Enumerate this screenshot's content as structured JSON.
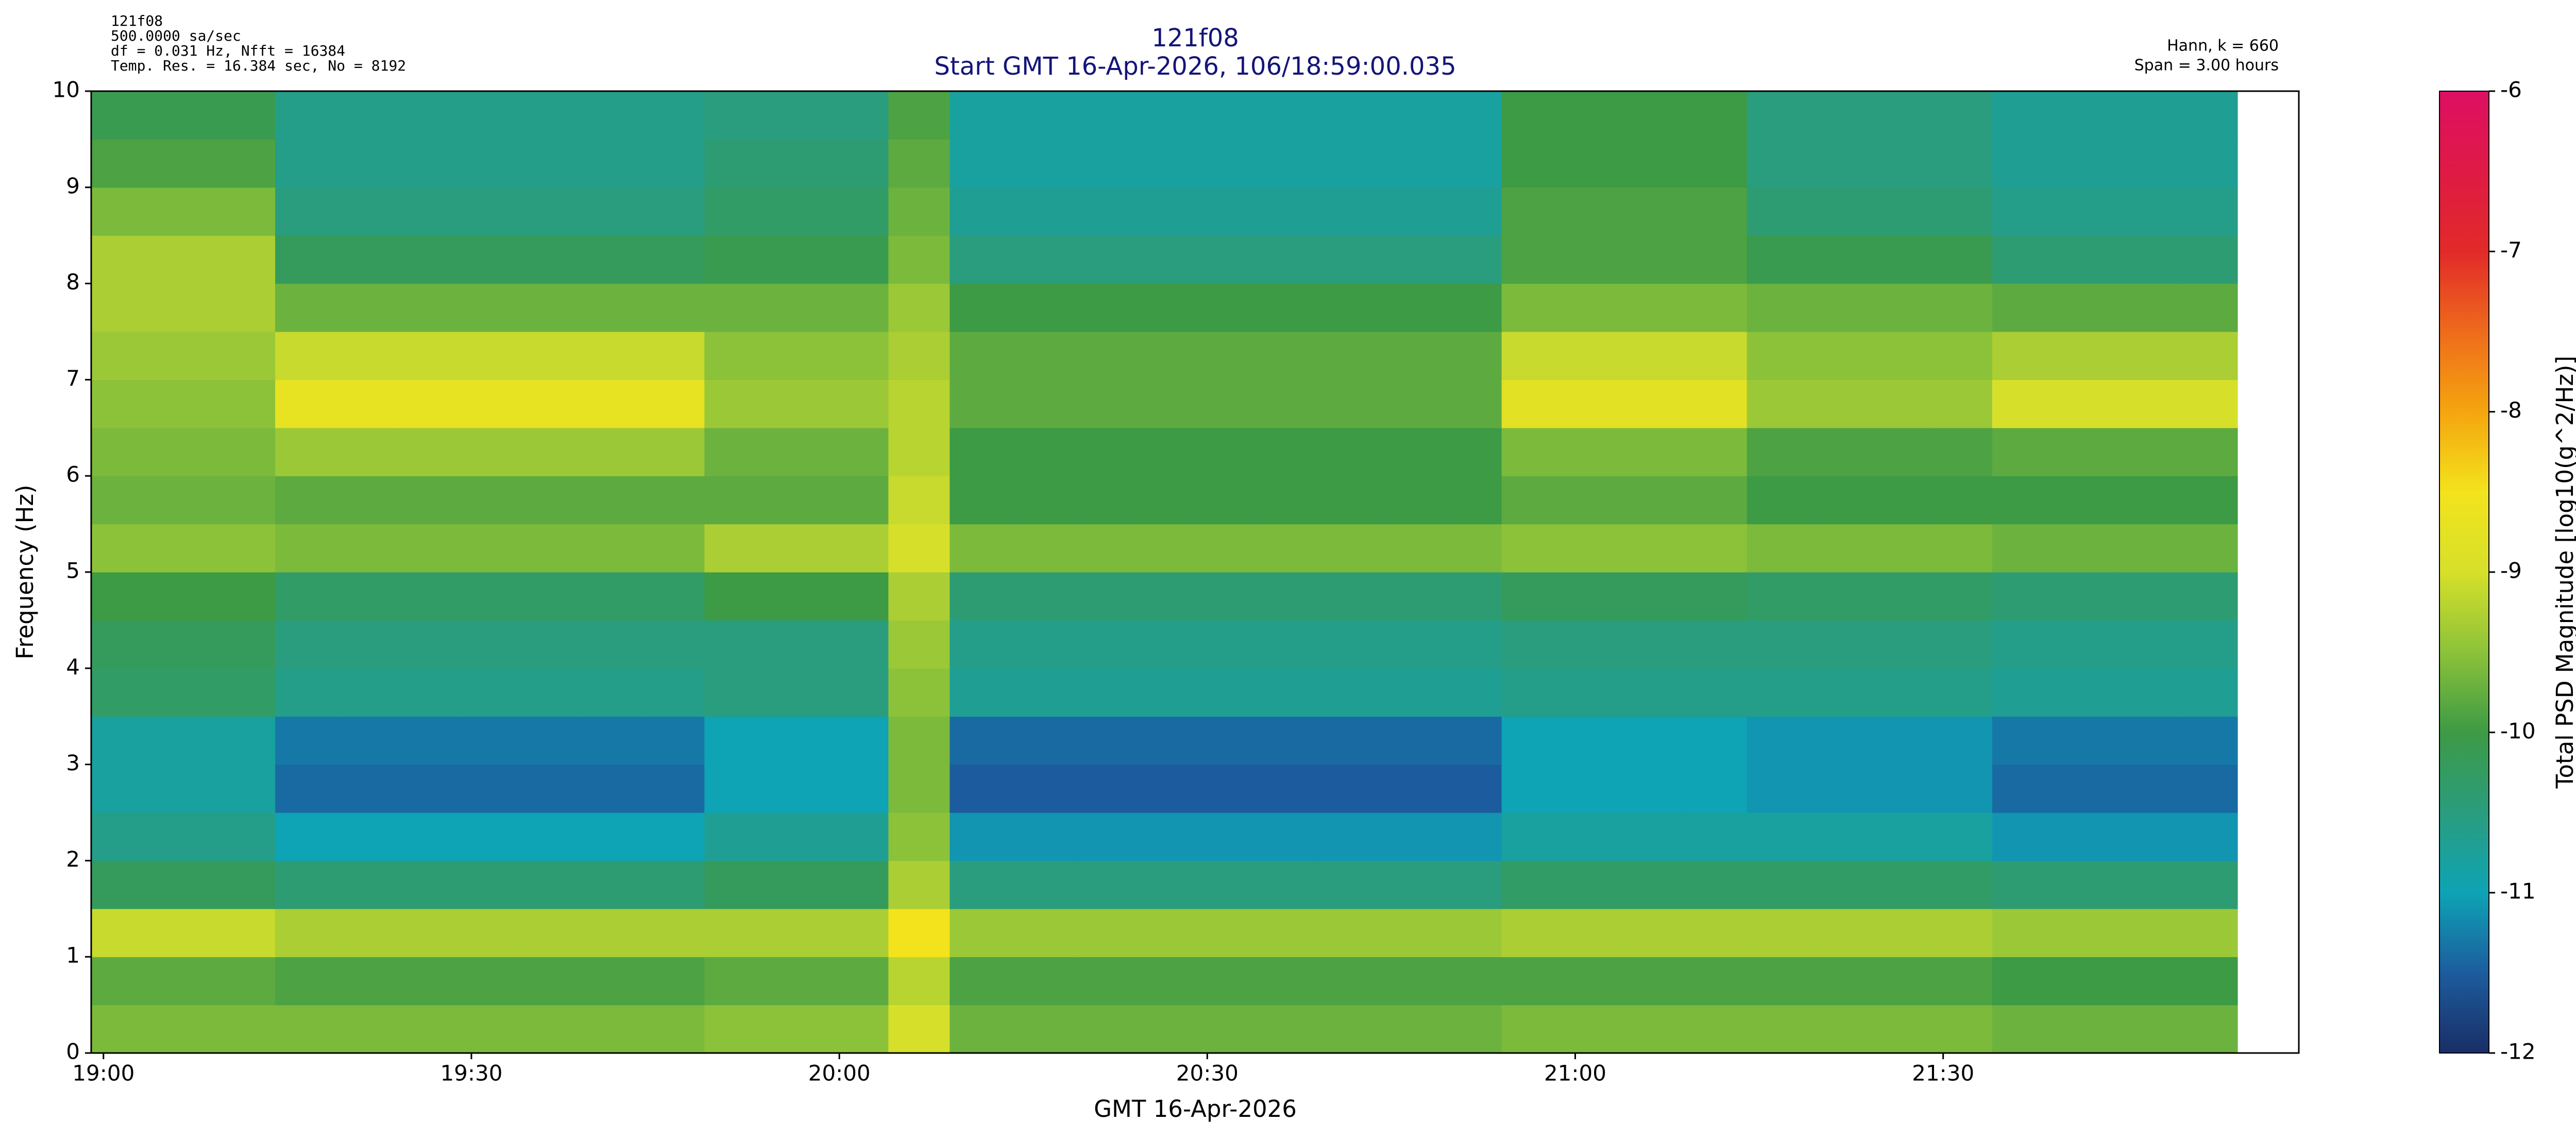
{
  "chart_data": {
    "type": "heatmap",
    "title": "121f08",
    "subtitle": "Start GMT 16-Apr-2026, 106/18:59:00.035",
    "notes_left": [
      "121f08",
      "500.0000 sa/sec",
      "df = 0.031 Hz,  Nfft = 16384",
      "Temp. Res. = 16.384 sec, No = 8192"
    ],
    "notes_right": [
      "Hann, k = 660",
      "Span = 3.00 hours"
    ],
    "x_label": "GMT 16-Apr-2026",
    "y_label": "Frequency (Hz)",
    "colorbar_label": "Total PSD Magnitude [log10(g^2/Hz)]",
    "xlim": [
      1139,
      1319
    ],
    "ylim": [
      0,
      10
    ],
    "xticks": [
      {
        "value": 1140,
        "label": "19:00"
      },
      {
        "value": 1170,
        "label": "19:30"
      },
      {
        "value": 1200,
        "label": "20:00"
      },
      {
        "value": 1230,
        "label": "20:30"
      },
      {
        "value": 1260,
        "label": "21:00"
      },
      {
        "value": 1290,
        "label": "21:30"
      }
    ],
    "yticks": [
      0,
      1,
      2,
      3,
      4,
      5,
      6,
      7,
      8,
      9,
      10
    ],
    "zlim": [
      -12,
      -6
    ],
    "zticks": [
      -6,
      -7,
      -8,
      -9,
      -10,
      -11,
      -12
    ],
    "colors": [
      "#1a2e66",
      "#1c5c9e",
      "#0ea3b5",
      "#2a9d7e",
      "#3d9a45",
      "#8cc23a",
      "#d6e02a",
      "#f3e31c",
      "#f5a50f",
      "#ee6b1c",
      "#e22a28",
      "#df1a45",
      "#de0f62"
    ],
    "x": [
      1139,
      1144,
      1149,
      1154,
      1159,
      1164,
      1169,
      1174,
      1179,
      1184,
      1189,
      1194,
      1199,
      1204,
      1209,
      1214,
      1219,
      1224,
      1229,
      1234,
      1239,
      1244,
      1249,
      1254,
      1259,
      1264,
      1269,
      1274,
      1279,
      1284,
      1289,
      1294,
      1299,
      1304,
      1309,
      1314
    ],
    "y": [
      0,
      0.5,
      1,
      1.5,
      2,
      2.5,
      3,
      3.5,
      4,
      4.5,
      5,
      5.5,
      6,
      6.5,
      7,
      7.5,
      8,
      8.5,
      9,
      9.5
    ],
    "z": [
      [
        -9.6,
        -9.6,
        -9.6,
        -9.6,
        -9.6,
        -9.6,
        -9.6,
        -9.6,
        -9.6,
        -9.6,
        -9.5,
        -9.5,
        -9.5,
        -9,
        -9.7,
        -9.7,
        -9.7,
        -9.7,
        -9.7,
        -9.7,
        -9.7,
        -9.7,
        -9.7,
        -9.6,
        -9.6,
        -9.6,
        -9.6,
        -9.6,
        -9.6,
        -9.6,
        -9.6,
        -9.7,
        -9.7,
        -9.7,
        -9.7,
        null
      ],
      [
        -9.8,
        -9.8,
        -9.8,
        -9.9,
        -9.9,
        -9.9,
        -9.9,
        -9.9,
        -9.9,
        -9.9,
        -9.8,
        -9.8,
        -9.8,
        -9.2,
        -9.9,
        -9.9,
        -9.9,
        -9.9,
        -9.9,
        -9.9,
        -9.9,
        -9.9,
        -9.9,
        -9.9,
        -9.9,
        -9.9,
        -9.9,
        -9.9,
        -9.9,
        -9.9,
        -9.9,
        -10,
        -10,
        -10,
        -10,
        null
      ],
      [
        -9.1,
        -9.1,
        -9.1,
        -9.3,
        -9.3,
        -9.3,
        -9.3,
        -9.3,
        -9.3,
        -9.3,
        -9.3,
        -9.3,
        -9.3,
        -8.5,
        -9.4,
        -9.4,
        -9.4,
        -9.4,
        -9.4,
        -9.4,
        -9.4,
        -9.4,
        -9.4,
        -9.3,
        -9.3,
        -9.3,
        -9.3,
        -9.3,
        -9.3,
        -9.3,
        -9.3,
        -9.4,
        -9.4,
        -9.4,
        -9.4,
        null
      ],
      [
        -10.2,
        -10.2,
        -10.2,
        -10.4,
        -10.4,
        -10.4,
        -10.4,
        -10.4,
        -10.4,
        -10.4,
        -10.2,
        -10.2,
        -10.2,
        -9.3,
        -10.5,
        -10.5,
        -10.5,
        -10.5,
        -10.5,
        -10.5,
        -10.5,
        -10.5,
        -10.5,
        -10.3,
        -10.3,
        -10.3,
        -10.3,
        -10.3,
        -10.3,
        -10.3,
        -10.3,
        -10.4,
        -10.4,
        -10.4,
        -10.4,
        null
      ],
      [
        -10.6,
        -10.6,
        -10.6,
        -11,
        -11,
        -11,
        -11,
        -11,
        -11,
        -11,
        -10.7,
        -10.7,
        -10.7,
        -9.5,
        -11.1,
        -11.1,
        -11.1,
        -11.1,
        -11.1,
        -11.1,
        -11.1,
        -11.1,
        -11.1,
        -10.8,
        -10.8,
        -10.8,
        -10.8,
        -10.8,
        -10.8,
        -10.8,
        -10.8,
        -11.1,
        -11.1,
        -11.1,
        -11.1,
        null
      ],
      [
        -10.8,
        -10.8,
        -10.8,
        -11.4,
        -11.4,
        -11.4,
        -11.4,
        -11.4,
        -11.4,
        -11.4,
        -11,
        -11,
        -11,
        -9.6,
        -11.5,
        -11.5,
        -11.5,
        -11.5,
        -11.5,
        -11.5,
        -11.5,
        -11.5,
        -11.5,
        -11,
        -11,
        -11,
        -11,
        -11.1,
        -11.1,
        -11.1,
        -11.1,
        -11.4,
        -11.4,
        -11.4,
        -11.4,
        null
      ],
      [
        -10.8,
        -10.8,
        -10.8,
        -11.3,
        -11.3,
        -11.3,
        -11.3,
        -11.3,
        -11.3,
        -11.3,
        -11,
        -11,
        -11,
        -9.6,
        -11.4,
        -11.4,
        -11.4,
        -11.4,
        -11.4,
        -11.4,
        -11.4,
        -11.4,
        -11.4,
        -11,
        -11,
        -11,
        -11,
        -11.1,
        -11.1,
        -11.1,
        -11.1,
        -11.3,
        -11.3,
        -11.3,
        -11.3,
        null
      ],
      [
        -10.3,
        -10.3,
        -10.3,
        -10.6,
        -10.6,
        -10.6,
        -10.6,
        -10.6,
        -10.6,
        -10.6,
        -10.5,
        -10.5,
        -10.5,
        -9.5,
        -10.7,
        -10.7,
        -10.7,
        -10.7,
        -10.7,
        -10.7,
        -10.7,
        -10.7,
        -10.7,
        -10.6,
        -10.6,
        -10.6,
        -10.6,
        -10.6,
        -10.6,
        -10.6,
        -10.6,
        -10.7,
        -10.7,
        -10.7,
        -10.7,
        null
      ],
      [
        -10.2,
        -10.2,
        -10.2,
        -10.5,
        -10.5,
        -10.5,
        -10.5,
        -10.5,
        -10.5,
        -10.5,
        -10.5,
        -10.5,
        -10.5,
        -9.4,
        -10.6,
        -10.6,
        -10.6,
        -10.6,
        -10.6,
        -10.6,
        -10.6,
        -10.6,
        -10.6,
        -10.5,
        -10.5,
        -10.5,
        -10.5,
        -10.5,
        -10.5,
        -10.5,
        -10.5,
        -10.6,
        -10.6,
        -10.6,
        -10.6,
        null
      ],
      [
        -10,
        -10,
        -10,
        -10.3,
        -10.3,
        -10.3,
        -10.3,
        -10.3,
        -10.3,
        -10.3,
        -10,
        -10,
        -10,
        -9.3,
        -10.4,
        -10.4,
        -10.4,
        -10.4,
        -10.4,
        -10.4,
        -10.4,
        -10.4,
        -10.4,
        -10.2,
        -10.2,
        -10.2,
        -10.2,
        -10.3,
        -10.3,
        -10.3,
        -10.3,
        -10.4,
        -10.4,
        -10.4,
        -10.4,
        null
      ],
      [
        -9.5,
        -9.5,
        -9.5,
        -9.6,
        -9.6,
        -9.6,
        -9.6,
        -9.6,
        -9.6,
        -9.6,
        -9.3,
        -9.3,
        -9.3,
        -9,
        -9.6,
        -9.6,
        -9.6,
        -9.6,
        -9.6,
        -9.6,
        -9.6,
        -9.6,
        -9.6,
        -9.5,
        -9.5,
        -9.5,
        -9.5,
        -9.6,
        -9.6,
        -9.6,
        -9.6,
        -9.7,
        -9.7,
        -9.7,
        -9.7,
        null
      ],
      [
        -9.7,
        -9.7,
        -9.7,
        -9.8,
        -9.8,
        -9.8,
        -9.8,
        -9.8,
        -9.8,
        -9.8,
        -9.8,
        -9.8,
        -9.8,
        -9.1,
        -10,
        -10,
        -10,
        -10,
        -10,
        -10,
        -10,
        -10,
        -10,
        -9.8,
        -9.8,
        -9.8,
        -9.8,
        -10,
        -10,
        -10,
        -10,
        -10,
        -10,
        -10,
        -10,
        null
      ],
      [
        -9.6,
        -9.6,
        -9.6,
        -9.4,
        -9.4,
        -9.4,
        -9.4,
        -9.4,
        -9.4,
        -9.4,
        -9.7,
        -9.7,
        -9.7,
        -9.2,
        -10,
        -10,
        -10,
        -10,
        -10,
        -10,
        -10,
        -10,
        -10,
        -9.6,
        -9.6,
        -9.6,
        -9.6,
        -9.9,
        -9.9,
        -9.9,
        -9.9,
        -9.8,
        -9.8,
        -9.8,
        -9.8,
        null
      ],
      [
        -9.5,
        -9.5,
        -9.5,
        -8.7,
        -8.7,
        -8.7,
        -8.7,
        -8.7,
        -8.7,
        -8.7,
        -9.4,
        -9.4,
        -9.4,
        -9.2,
        -9.8,
        -9.8,
        -9.8,
        -9.8,
        -9.8,
        -9.8,
        -9.8,
        -9.8,
        -9.8,
        -8.8,
        -8.8,
        -8.8,
        -8.8,
        -9.4,
        -9.4,
        -9.4,
        -9.4,
        -9,
        -9,
        -9,
        -9,
        null
      ],
      [
        -9.4,
        -9.4,
        -9.4,
        -9.1,
        -9.1,
        -9.1,
        -9.1,
        -9.1,
        -9.1,
        -9.1,
        -9.5,
        -9.5,
        -9.5,
        -9.3,
        -9.8,
        -9.8,
        -9.8,
        -9.8,
        -9.8,
        -9.8,
        -9.8,
        -9.8,
        -9.8,
        -9.1,
        -9.1,
        -9.1,
        -9.1,
        -9.5,
        -9.5,
        -9.5,
        -9.5,
        -9.3,
        -9.3,
        -9.3,
        -9.3,
        null
      ],
      [
        -9.3,
        -9.3,
        -9.3,
        -9.7,
        -9.7,
        -9.7,
        -9.7,
        -9.7,
        -9.7,
        -9.7,
        -9.7,
        -9.7,
        -9.7,
        -9.4,
        -10,
        -10,
        -10,
        -10,
        -10,
        -10,
        -10,
        -10,
        -10,
        -9.6,
        -9.6,
        -9.6,
        -9.6,
        -9.7,
        -9.7,
        -9.7,
        -9.7,
        -9.8,
        -9.8,
        -9.8,
        -9.8,
        null
      ],
      [
        -9.3,
        -9.3,
        -9.3,
        -10.2,
        -10.2,
        -10.2,
        -10.2,
        -10.2,
        -10.2,
        -10.2,
        -10.1,
        -10.1,
        -10.1,
        -9.6,
        -10.5,
        -10.5,
        -10.5,
        -10.5,
        -10.5,
        -10.5,
        -10.5,
        -10.5,
        -10.5,
        -9.9,
        -9.9,
        -9.9,
        -9.9,
        -10.1,
        -10.1,
        -10.1,
        -10.1,
        -10.4,
        -10.4,
        -10.4,
        -10.4,
        null
      ],
      [
        -9.6,
        -9.6,
        -9.6,
        -10.5,
        -10.5,
        -10.5,
        -10.5,
        -10.5,
        -10.5,
        -10.5,
        -10.3,
        -10.3,
        -10.3,
        -9.7,
        -10.7,
        -10.7,
        -10.7,
        -10.7,
        -10.7,
        -10.7,
        -10.7,
        -10.7,
        -10.7,
        -9.9,
        -9.9,
        -9.9,
        -9.9,
        -10.4,
        -10.4,
        -10.4,
        -10.4,
        -10.6,
        -10.6,
        -10.6,
        -10.6,
        null
      ],
      [
        -9.9,
        -9.9,
        -9.9,
        -10.6,
        -10.6,
        -10.6,
        -10.6,
        -10.6,
        -10.6,
        -10.6,
        -10.4,
        -10.4,
        -10.4,
        -9.8,
        -10.8,
        -10.8,
        -10.8,
        -10.8,
        -10.8,
        -10.8,
        -10.8,
        -10.8,
        -10.8,
        -10,
        -10,
        -10,
        -10,
        -10.5,
        -10.5,
        -10.5,
        -10.5,
        -10.7,
        -10.7,
        -10.7,
        -10.7,
        null
      ],
      [
        -10.1,
        -10.1,
        -10.1,
        -10.6,
        -10.6,
        -10.6,
        -10.6,
        -10.6,
        -10.6,
        -10.6,
        -10.5,
        -10.5,
        -10.5,
        -9.9,
        -10.8,
        -10.8,
        -10.8,
        -10.8,
        -10.8,
        -10.8,
        -10.8,
        -10.8,
        -10.8,
        -10,
        -10,
        -10,
        -10,
        -10.5,
        -10.5,
        -10.5,
        -10.5,
        -10.7,
        -10.7,
        -10.7,
        -10.7,
        null
      ]
    ]
  }
}
